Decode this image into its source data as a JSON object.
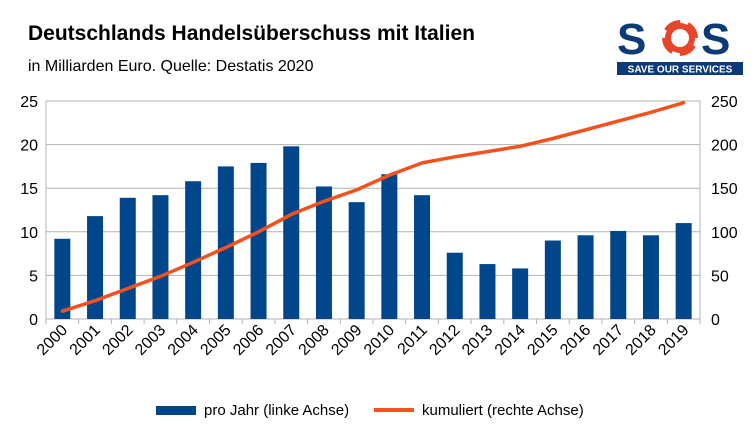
{
  "header": {
    "title": "Deutschlands Handelsüberschuss mit Italien",
    "subtitle": "in Milliarden Euro. Quelle: Destatis 2020"
  },
  "logo": {
    "text": "SOS",
    "tagline": "SAVE OUR SERVICES",
    "icon": "life-ring-icon",
    "color": "#0a3a78",
    "accent": "#e8462a"
  },
  "chart_data": {
    "type": "bar",
    "title": "Deutschlands Handelsüberschuss mit Italien",
    "subtitle": "in Milliarden Euro. Quelle: Destatis 2020",
    "categories": [
      "2000",
      "2001",
      "2002",
      "2003",
      "2004",
      "2005",
      "2006",
      "2007",
      "2008",
      "2009",
      "2010",
      "2011",
      "2012",
      "2013",
      "2014",
      "2015",
      "2016",
      "2017",
      "2018",
      "2019"
    ],
    "series": [
      {
        "name": "pro Jahr (linke Achse)",
        "type": "bar",
        "axis": "left",
        "color": "#00468b",
        "values": [
          9.2,
          11.8,
          13.9,
          14.2,
          15.8,
          17.5,
          17.9,
          19.8,
          15.2,
          13.4,
          16.6,
          14.2,
          7.6,
          6.3,
          5.8,
          9.0,
          9.6,
          10.1,
          9.6,
          11.0
        ]
      },
      {
        "name": "kumuliert (rechte Achse)",
        "type": "line",
        "axis": "right",
        "color": "#f4511e",
        "values": [
          9,
          21,
          35,
          49,
          65,
          82,
          100,
          120,
          135,
          148,
          165,
          179,
          186,
          192,
          198,
          207,
          217,
          227,
          237,
          248
        ]
      }
    ],
    "ylim": [
      0,
      25
    ],
    "y2lim": [
      0,
      250
    ],
    "yticks": [
      "0",
      "5",
      "10",
      "15",
      "20",
      "25"
    ],
    "y2ticks": [
      "0",
      "50",
      "100",
      "150",
      "200",
      "250"
    ],
    "grid": true,
    "legend": "bottom"
  }
}
